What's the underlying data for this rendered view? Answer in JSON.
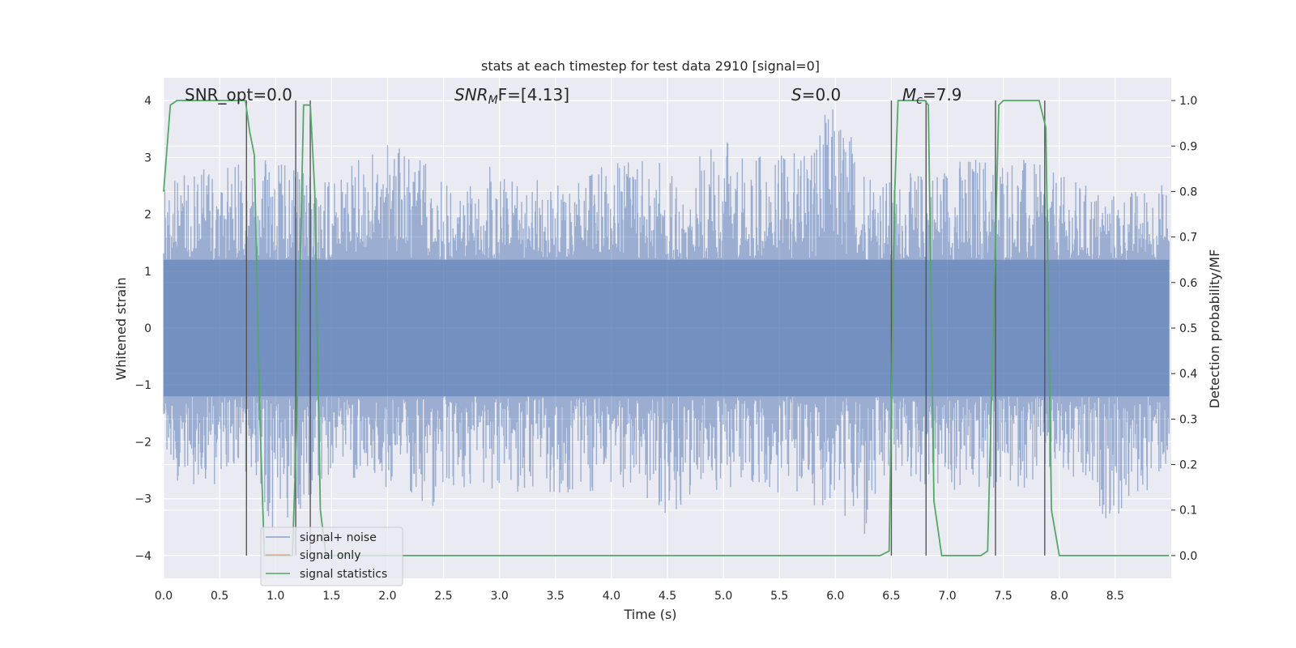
{
  "colors": {
    "plot_bg": "#eaeaf2",
    "grid": "#ffffff",
    "noise": "#4c72b0",
    "signal_only": "#dd8452",
    "statistics": "#55a868",
    "vlines": "#555555",
    "text": "#262626"
  },
  "chart_data": {
    "type": "line",
    "title": "stats at each timestep for test data 2910 [signal=0]",
    "xlabel": "Time (s)",
    "ylabel": "Whitened strain",
    "ylabel_right": "Detection probability/MF",
    "xlim": [
      0.0,
      9.0
    ],
    "ylim": [
      -4.4,
      4.4
    ],
    "ylim_right": [
      -0.05,
      1.05
    ],
    "xticks": [
      "0.0",
      "0.5",
      "1.0",
      "1.5",
      "2.0",
      "2.5",
      "3.0",
      "3.5",
      "4.0",
      "4.5",
      "5.0",
      "5.5",
      "6.0",
      "6.5",
      "7.0",
      "7.5",
      "8.0",
      "8.5"
    ],
    "yticks": [
      "4",
      "3",
      "2",
      "1",
      "0",
      "−1",
      "−2",
      "−3",
      "−4"
    ],
    "yticks_right": [
      "1.0",
      "0.9",
      "0.8",
      "0.7",
      "0.6",
      "0.5",
      "0.4",
      "0.3",
      "0.2",
      "0.1",
      "0.0"
    ],
    "grid": true,
    "annotations": {
      "snr_opt": "SNR_opt=0.0",
      "snr_mf_sym": "SNR",
      "snr_mf_sub": "M",
      "snr_mf_rest": "F=[4.13]",
      "s_sym": "S",
      "s_rest": "=0.0",
      "mc_sym": "M",
      "mc_sub": "c",
      "mc_rest": "=7.9"
    },
    "legend": {
      "position": "lower-left",
      "entries": [
        "signal+ noise",
        "signal only",
        "signal statistics"
      ]
    },
    "noise_envelope": {
      "x": [
        0.0,
        0.05,
        0.3,
        0.72,
        1.0,
        1.5,
        2.0,
        2.5,
        3.0,
        3.5,
        4.0,
        4.5,
        5.0,
        5.5,
        6.0,
        6.26,
        6.5,
        7.0,
        7.5,
        8.0,
        8.5,
        8.98
      ],
      "upper": [
        2.4,
        2.6,
        2.8,
        2.9,
        3.0,
        2.6,
        3.4,
        2.7,
        2.9,
        2.5,
        3.0,
        2.9,
        3.3,
        3.0,
        4.0,
        3.1,
        2.6,
        3.0,
        3.2,
        2.7,
        2.4,
        2.6
      ],
      "lower": [
        -2.3,
        -2.6,
        -2.9,
        -2.5,
        -3.7,
        -2.6,
        -2.9,
        -3.2,
        -2.8,
        -3.1,
        -2.9,
        -3.3,
        -2.8,
        -3.0,
        -3.2,
        -4.0,
        -2.6,
        -3.0,
        -2.9,
        -2.7,
        -3.5,
        -2.5
      ]
    },
    "signal_statistics": {
      "x": [
        0.0,
        0.06,
        0.12,
        0.3,
        0.5,
        0.73,
        0.77,
        0.81,
        0.86,
        0.9,
        1.0,
        1.15,
        1.19,
        1.25,
        1.31,
        1.35,
        1.4,
        1.45,
        2.0,
        3.0,
        4.0,
        5.0,
        6.0,
        6.4,
        6.48,
        6.53,
        6.56,
        6.6,
        6.8,
        6.83,
        6.88,
        6.95,
        7.2,
        7.3,
        7.36,
        7.42,
        7.46,
        7.5,
        7.6,
        7.82,
        7.88,
        7.93,
        8.0,
        8.5,
        8.98
      ],
      "y": [
        0.8,
        0.99,
        1.0,
        1.0,
        1.0,
        1.0,
        0.93,
        0.88,
        0.3,
        0.0,
        0.0,
        0.0,
        0.3,
        0.99,
        0.99,
        0.8,
        0.1,
        0.0,
        0.0,
        0.0,
        0.0,
        0.0,
        0.0,
        0.0,
        0.01,
        0.8,
        1.0,
        1.0,
        1.0,
        0.99,
        0.12,
        0.0,
        0.0,
        0.0,
        0.01,
        0.6,
        0.99,
        1.0,
        1.0,
        1.0,
        0.94,
        0.1,
        0.0,
        0.0,
        0.0
      ]
    },
    "vertical_lines": [
      {
        "x": 0.74,
        "ymin": -4.0,
        "ymax": 4.0
      },
      {
        "x": 1.18,
        "ymin": -4.0,
        "ymax": 4.0
      },
      {
        "x": 1.31,
        "ymin": -4.0,
        "ymax": 4.0
      },
      {
        "x": 6.5,
        "ymin": -4.0,
        "ymax": 4.0
      },
      {
        "x": 6.81,
        "ymin": -4.0,
        "ymax": 4.0
      },
      {
        "x": 7.43,
        "ymin": -4.0,
        "ymax": 4.0
      },
      {
        "x": 7.87,
        "ymin": -4.0,
        "ymax": 4.0
      }
    ]
  }
}
